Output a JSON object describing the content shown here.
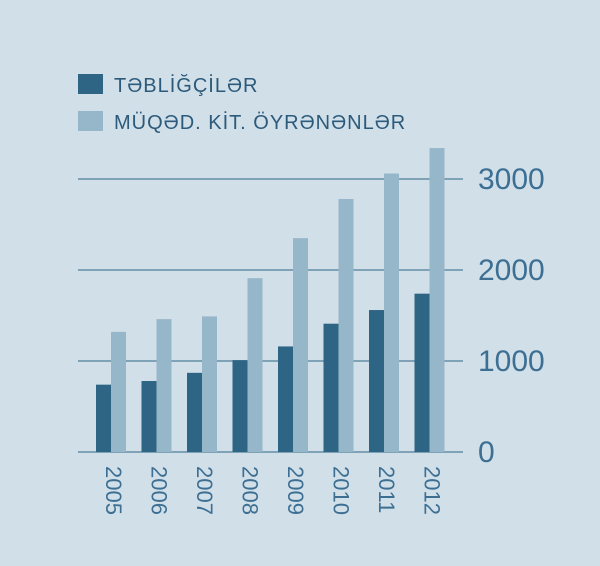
{
  "chart_data": {
    "type": "bar",
    "title": "",
    "xlabel": "",
    "ylabel": "",
    "categories": [
      "2005",
      "2006",
      "2007",
      "2008",
      "2009",
      "2010",
      "2011",
      "2012"
    ],
    "series": [
      {
        "name": "TƏBLİĞÇİLƏR",
        "color": "#2e6584",
        "values": [
          740,
          780,
          870,
          1010,
          1160,
          1410,
          1560,
          1740
        ]
      },
      {
        "name": "MÜQƏD. KİT. ÖYRƏNƏNLƏR",
        "color": "#96b6c9",
        "values": [
          1320,
          1460,
          1490,
          1910,
          2350,
          2780,
          3060,
          3340
        ]
      }
    ],
    "yticks": [
      0,
      1000,
      2000,
      3000
    ],
    "tick_labels": [
      "0",
      "1000",
      "2000",
      "3000"
    ],
    "ylim": [
      0,
      3400
    ],
    "grid": true,
    "legend": "top-left",
    "axis_side": "right"
  },
  "colors": {
    "background": "#d1dfe9",
    "gridline": "#2e6584",
    "text": "#3d6f93"
  }
}
